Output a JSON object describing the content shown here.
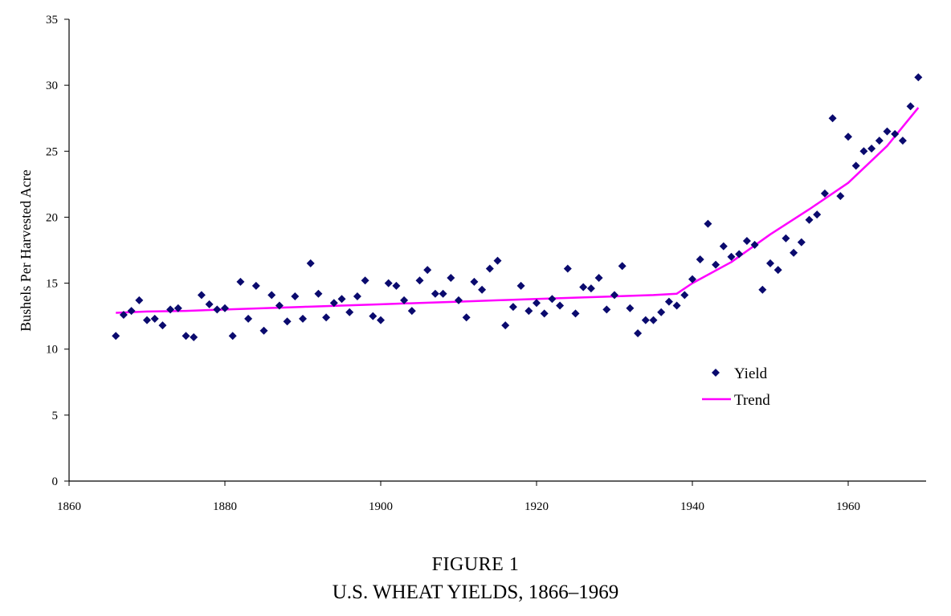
{
  "figure": {
    "label": "FIGURE 1",
    "title": "U.S. WHEAT YIELDS, 1866–1969"
  },
  "chart_data": {
    "type": "scatter",
    "title": "",
    "xlabel": "",
    "ylabel": "Bushels Per Harvested Acre",
    "xlim": [
      1860,
      1970
    ],
    "ylim": [
      0,
      35
    ],
    "xticks": [
      1860,
      1880,
      1900,
      1920,
      1940,
      1960
    ],
    "yticks": [
      0,
      5,
      10,
      15,
      20,
      25,
      30,
      35
    ],
    "grid": false,
    "legend": {
      "position": "lower-right",
      "entries": [
        "Yield",
        "Trend"
      ]
    },
    "colors": {
      "yield": "#0a0a6e",
      "trend": "#ff00ff",
      "axis": "#000000"
    },
    "series": [
      {
        "name": "Yield",
        "marker": "diamond",
        "x": [
          1866,
          1867,
          1868,
          1869,
          1870,
          1871,
          1872,
          1873,
          1874,
          1875,
          1876,
          1877,
          1878,
          1879,
          1880,
          1881,
          1882,
          1883,
          1884,
          1885,
          1886,
          1887,
          1888,
          1889,
          1890,
          1891,
          1892,
          1893,
          1894,
          1895,
          1896,
          1897,
          1898,
          1899,
          1900,
          1901,
          1902,
          1903,
          1904,
          1905,
          1906,
          1907,
          1908,
          1909,
          1910,
          1911,
          1912,
          1913,
          1914,
          1915,
          1916,
          1917,
          1918,
          1919,
          1920,
          1921,
          1922,
          1923,
          1924,
          1925,
          1926,
          1927,
          1928,
          1929,
          1930,
          1931,
          1932,
          1933,
          1934,
          1935,
          1936,
          1937,
          1938,
          1939,
          1940,
          1941,
          1942,
          1943,
          1944,
          1945,
          1946,
          1947,
          1948,
          1949,
          1950,
          1951,
          1952,
          1953,
          1954,
          1955,
          1956,
          1957,
          1958,
          1959,
          1960,
          1961,
          1962,
          1963,
          1964,
          1965,
          1966,
          1967,
          1968,
          1969
        ],
        "y": [
          11.0,
          12.6,
          12.9,
          13.7,
          12.2,
          12.3,
          11.8,
          13.0,
          13.1,
          11.0,
          10.9,
          14.1,
          13.4,
          13.0,
          13.1,
          11.0,
          15.1,
          12.3,
          14.8,
          11.4,
          14.1,
          13.3,
          12.1,
          14.0,
          12.3,
          16.5,
          14.2,
          12.4,
          13.5,
          13.8,
          12.8,
          14.0,
          15.2,
          12.5,
          12.2,
          15.0,
          14.8,
          13.7,
          12.9,
          15.2,
          16.0,
          14.2,
          14.2,
          15.4,
          13.7,
          12.4,
          15.1,
          14.5,
          16.1,
          16.7,
          11.8,
          13.2,
          14.8,
          12.9,
          13.5,
          12.7,
          13.8,
          13.3,
          16.1,
          12.7,
          14.7,
          14.6,
          15.4,
          13.0,
          14.1,
          16.3,
          13.1,
          11.2,
          12.2,
          12.2,
          12.8,
          13.6,
          13.3,
          14.1,
          15.3,
          16.8,
          19.5,
          16.4,
          17.8,
          17.0,
          17.2,
          18.2,
          17.9,
          14.5,
          16.5,
          16.0,
          18.4,
          17.3,
          18.1,
          19.8,
          20.2,
          21.8,
          27.5,
          21.6,
          26.1,
          23.9,
          25.0,
          25.2,
          25.8,
          26.5,
          26.3,
          25.8,
          28.4,
          30.6
        ]
      },
      {
        "name": "Trend",
        "line": true,
        "x": [
          1866,
          1870,
          1875,
          1880,
          1885,
          1890,
          1895,
          1900,
          1905,
          1910,
          1915,
          1920,
          1925,
          1930,
          1935,
          1938,
          1940,
          1945,
          1950,
          1955,
          1960,
          1965,
          1969
        ],
        "y": [
          12.75,
          12.85,
          12.9,
          13.0,
          13.1,
          13.2,
          13.3,
          13.4,
          13.5,
          13.6,
          13.7,
          13.8,
          13.9,
          14.0,
          14.1,
          14.2,
          15.0,
          16.6,
          18.7,
          20.6,
          22.6,
          25.4,
          28.3
        ]
      }
    ]
  }
}
